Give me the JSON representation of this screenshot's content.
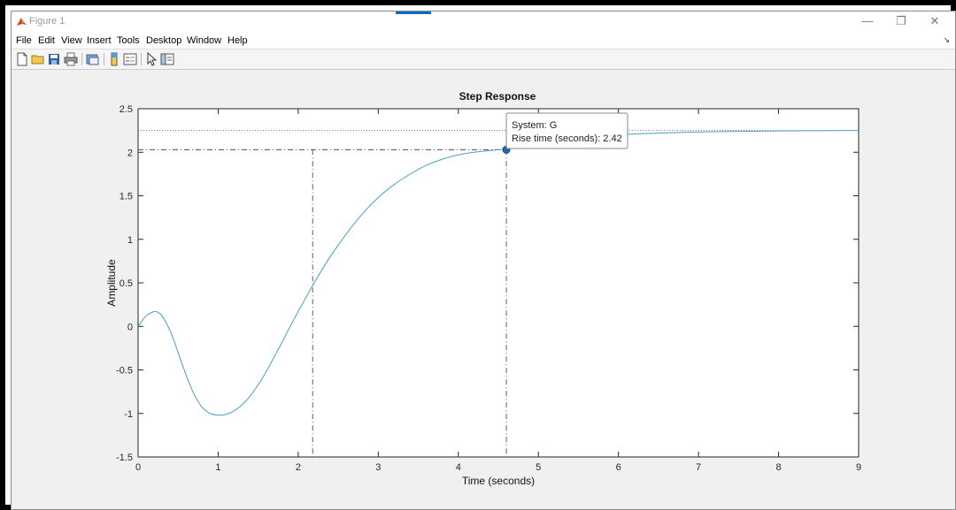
{
  "window": {
    "title": "Figure 1"
  },
  "menu": {
    "items": [
      "File",
      "Edit",
      "View",
      "Insert",
      "Tools",
      "Desktop",
      "Window",
      "Help"
    ]
  },
  "toolbar": {
    "icons": [
      "new-figure-icon",
      "open-file-icon",
      "save-icon",
      "print-icon",
      "print-preview-icon",
      "colorbar-icon",
      "legend-icon",
      "pointer-icon",
      "property-inspector-icon"
    ]
  },
  "colors": {
    "response": "#4a9fc0",
    "datatip_marker": "#1f6fa8",
    "axes": "#262626",
    "grid_ref": "#333333"
  },
  "chart_data": {
    "type": "line",
    "title": "Step Response",
    "xlabel": "Time (seconds)",
    "ylabel": "Amplitude",
    "xlim": [
      0,
      9
    ],
    "ylim": [
      -1.5,
      2.5
    ],
    "xticks": [
      0,
      1,
      2,
      3,
      4,
      5,
      6,
      7,
      8,
      9
    ],
    "yticks": [
      -1.5,
      -1,
      -0.5,
      0,
      0.5,
      1,
      1.5,
      2,
      2.5
    ],
    "xtick_labels": [
      "0",
      "1",
      "2",
      "3",
      "4",
      "5",
      "6",
      "7",
      "8",
      "9"
    ],
    "ytick_labels": [
      "-1.5",
      "-1",
      "-0.5",
      "0",
      "0.5",
      "1",
      "1.5",
      "2",
      "2.5"
    ],
    "grid": false,
    "series": [
      {
        "x": [
          0,
          0.1,
          0.2,
          0.25,
          0.3,
          0.4,
          0.5,
          0.6,
          0.7,
          0.8,
          0.9,
          1.0,
          1.1,
          1.2,
          1.3,
          1.4,
          1.5,
          1.6,
          1.7,
          1.8,
          1.9,
          2.0,
          2.2,
          2.4,
          2.6,
          2.8,
          3.0,
          3.2,
          3.4,
          3.6,
          3.8,
          4.0,
          4.2,
          4.4,
          4.6,
          5.0,
          5.5,
          6.0,
          6.5,
          7.0,
          7.5,
          8.0,
          8.5,
          9.0
        ],
        "y": [
          0,
          0.12,
          0.17,
          0.16,
          0.12,
          -0.05,
          -0.3,
          -0.56,
          -0.78,
          -0.93,
          -1.0,
          -1.02,
          -1.01,
          -0.97,
          -0.9,
          -0.8,
          -0.67,
          -0.52,
          -0.35,
          -0.18,
          0.0,
          0.17,
          0.5,
          0.8,
          1.06,
          1.29,
          1.48,
          1.63,
          1.75,
          1.85,
          1.92,
          1.97,
          2.0,
          2.02,
          2.04,
          2.1,
          2.16,
          2.2,
          2.22,
          2.234,
          2.24,
          2.245,
          2.248,
          2.25
        ]
      }
    ],
    "steady_state": 2.25,
    "rise_time": {
      "t_start": 2.18,
      "t_end": 4.6,
      "level": 2.03
    },
    "datatip": {
      "line1": "System: G",
      "line2": "Rise time (seconds): 2.42"
    }
  }
}
